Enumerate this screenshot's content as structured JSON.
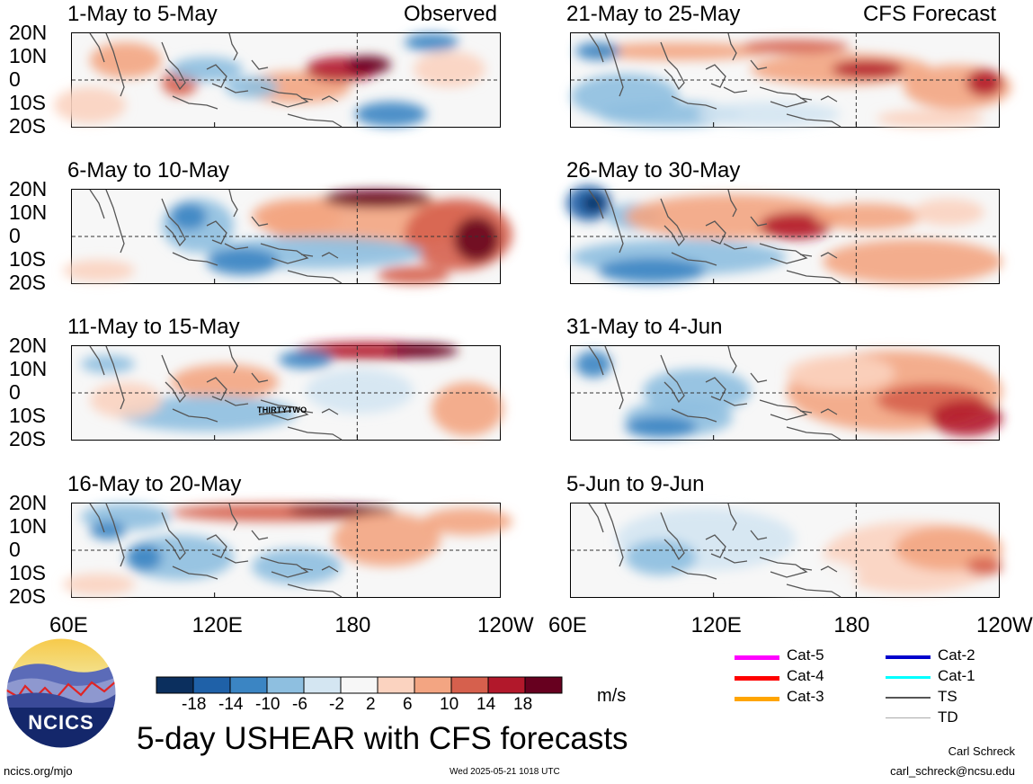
{
  "panels": [
    {
      "id": "p1",
      "title": "1-May to 5-May",
      "tag": "Observed",
      "storm": ""
    },
    {
      "id": "p2",
      "title": "21-May to 25-May",
      "tag": "CFS Forecast",
      "storm": ""
    },
    {
      "id": "p3",
      "title": "6-May to 10-May",
      "tag": "",
      "storm": ""
    },
    {
      "id": "p4",
      "title": "26-May to 30-May",
      "tag": "",
      "storm": ""
    },
    {
      "id": "p5",
      "title": "11-May to 15-May",
      "tag": "",
      "storm": "THIRTYTWO"
    },
    {
      "id": "p6",
      "title": "31-May to 4-Jun",
      "tag": "",
      "storm": ""
    },
    {
      "id": "p7",
      "title": "16-May to 20-May",
      "tag": "",
      "storm": ""
    },
    {
      "id": "p8",
      "title": "5-Jun to 9-Jun",
      "tag": "",
      "storm": ""
    }
  ],
  "lat_labels": [
    "20N",
    "10N",
    "0",
    "10S",
    "20S"
  ],
  "lon_labels": [
    "60E",
    "120E",
    "180",
    "120W"
  ],
  "colorbar": {
    "ticks": [
      "-18",
      "-14",
      "-10",
      "-6",
      "-2",
      "2",
      "6",
      "10",
      "14",
      "18"
    ],
    "colors": [
      "#0b2f5e",
      "#1f61a8",
      "#3b85c3",
      "#8ebfe0",
      "#d4e6f2",
      "#f7f7f7",
      "#fbd3c0",
      "#f3a582",
      "#d6604d",
      "#b2182b",
      "#67001f"
    ],
    "units": "m/s"
  },
  "legend": [
    {
      "label": "Cat-5",
      "color": "#ff00ff",
      "width": 5
    },
    {
      "label": "Cat-4",
      "color": "#ff0000",
      "width": 5
    },
    {
      "label": "Cat-3",
      "color": "#ffa500",
      "width": 5
    },
    {
      "label": "Cat-2",
      "color": "#0000cd",
      "width": 4
    },
    {
      "label": "Cat-1",
      "color": "#00ffff",
      "width": 3
    },
    {
      "label": "TS",
      "color": "#555555",
      "width": 2
    },
    {
      "label": "TD",
      "color": "#aaaaaa",
      "width": 1
    }
  ],
  "main_title": "5-day USHEAR with CFS forecasts",
  "logo_text": "NCICS",
  "footer": {
    "url": "ncics.org/mjo",
    "timestamp": "Wed 2025-05-21 1018 UTC",
    "author": "Carl Schreck",
    "email": "carl_schreck@ncsu.edu"
  }
}
